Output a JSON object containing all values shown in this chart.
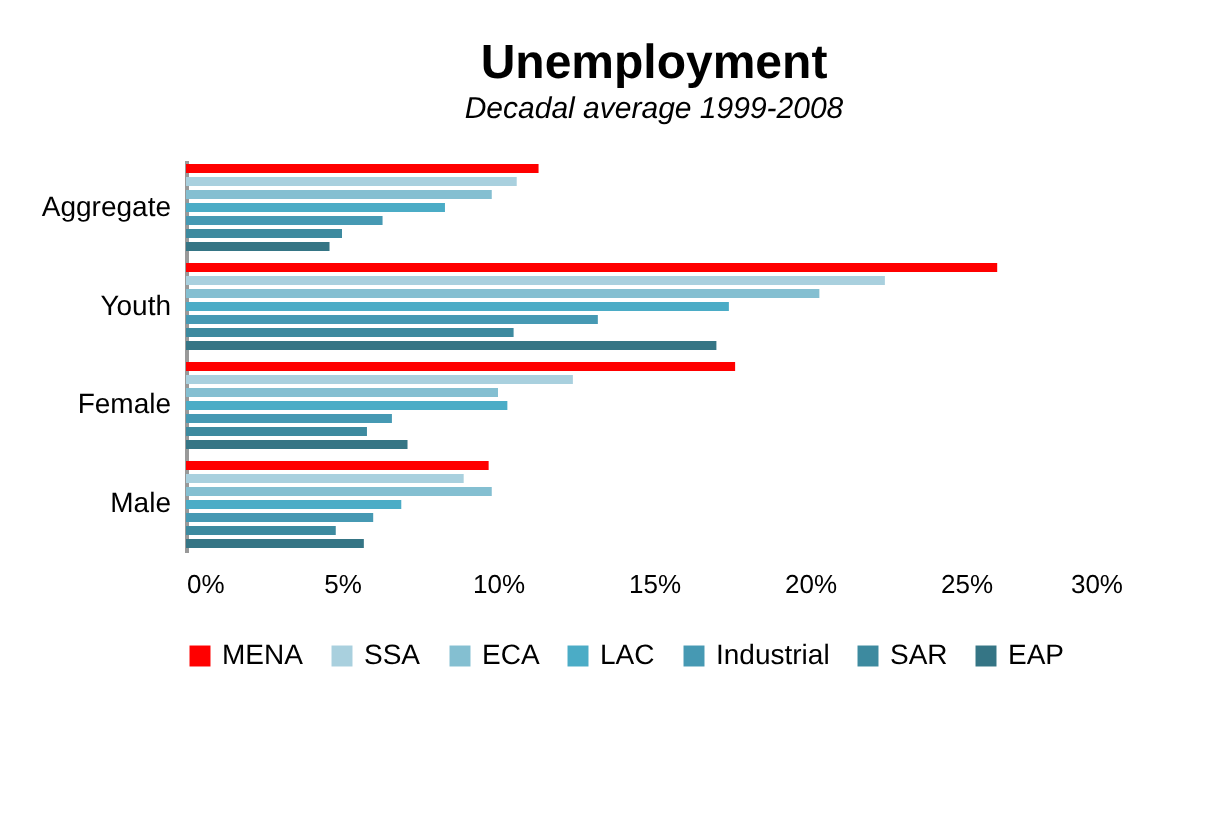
{
  "chart_data": {
    "type": "bar",
    "orientation": "horizontal",
    "title": "Unemployment",
    "subtitle": "Decadal average 1999-2008",
    "categories": [
      "Aggregate",
      "Youth",
      "Female",
      "Male"
    ],
    "series": [
      {
        "name": "MENA",
        "color": "#ff0000",
        "values": [
          11.3,
          26.0,
          17.6,
          9.7
        ]
      },
      {
        "name": "SSA",
        "color": "#a9d0de",
        "values": [
          10.6,
          22.4,
          12.4,
          8.9
        ]
      },
      {
        "name": "ECA",
        "color": "#84bfd1",
        "values": [
          9.8,
          20.3,
          10.0,
          9.8
        ]
      },
      {
        "name": "LAC",
        "color": "#4bacc6",
        "values": [
          8.3,
          17.4,
          10.3,
          6.9
        ]
      },
      {
        "name": "Industrial",
        "color": "#4699b3",
        "values": [
          6.3,
          13.2,
          6.6,
          6.0
        ]
      },
      {
        "name": "SAR",
        "color": "#3d8a9f",
        "values": [
          5.0,
          10.5,
          5.8,
          4.8
        ]
      },
      {
        "name": "EAP",
        "color": "#357585",
        "values": [
          4.6,
          17.0,
          7.1,
          5.7
        ]
      }
    ],
    "xlim": [
      0,
      30
    ],
    "xticks": [
      {
        "value": 0,
        "label": "0%"
      },
      {
        "value": 5,
        "label": "5%"
      },
      {
        "value": 10,
        "label": "10%"
      },
      {
        "value": 15,
        "label": "15%"
      },
      {
        "value": 20,
        "label": "20%"
      },
      {
        "value": 25,
        "label": "25%"
      },
      {
        "value": 30,
        "label": "30%"
      }
    ],
    "legend": "bottom"
  }
}
